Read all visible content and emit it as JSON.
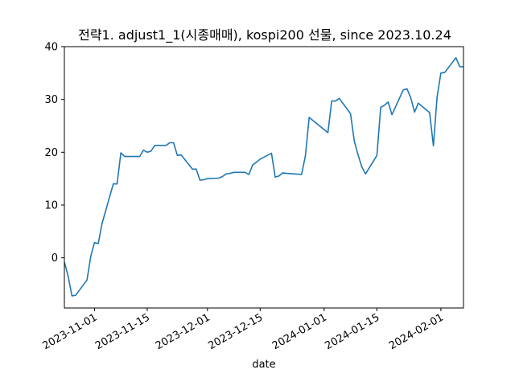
{
  "chart_data": {
    "type": "line",
    "title": "전략1. adjust1_1(시종매매), kospi200 선물, since 2023.10.24",
    "xlabel": "date",
    "ylabel": "",
    "grid": false,
    "legend": "none",
    "xlim": [
      "2023-10-24",
      "2024-02-07"
    ],
    "ylim": [
      -9.5,
      40
    ],
    "yticks": [
      0,
      10,
      20,
      30,
      40
    ],
    "xticks": [
      "2023-11-01",
      "2023-11-15",
      "2023-12-01",
      "2023-12-15",
      "2024-01-01",
      "2024-01-15",
      "2024-02-01"
    ],
    "line_color": "#1f77b4",
    "series": [
      {
        "x": [
          "2023-10-24",
          "2023-10-25",
          "2023-10-26",
          "2023-10-27",
          "2023-10-30",
          "2023-10-31",
          "2023-11-01",
          "2023-11-02",
          "2023-11-03",
          "2023-11-06",
          "2023-11-07",
          "2023-11-08",
          "2023-11-09",
          "2023-11-10",
          "2023-11-13",
          "2023-11-14",
          "2023-11-15",
          "2023-11-16",
          "2023-11-17",
          "2023-11-20",
          "2023-11-21",
          "2023-11-22",
          "2023-11-23",
          "2023-11-24",
          "2023-11-27",
          "2023-11-28",
          "2023-11-29",
          "2023-11-30",
          "2023-12-01",
          "2023-12-04",
          "2023-12-05",
          "2023-12-06",
          "2023-12-07",
          "2023-12-08",
          "2023-12-11",
          "2023-12-12",
          "2023-12-13",
          "2023-12-14",
          "2023-12-15",
          "2023-12-18",
          "2023-12-19",
          "2023-12-20",
          "2023-12-21",
          "2023-12-22",
          "2023-12-26",
          "2023-12-27",
          "2023-12-28",
          "2024-01-02",
          "2024-01-03",
          "2024-01-04",
          "2024-01-05",
          "2024-01-08",
          "2024-01-09",
          "2024-01-10",
          "2024-01-11",
          "2024-01-12",
          "2024-01-15",
          "2024-01-16",
          "2024-01-17",
          "2024-01-18",
          "2024-01-19",
          "2024-01-22",
          "2024-01-23",
          "2024-01-24",
          "2024-01-25",
          "2024-01-26",
          "2024-01-29",
          "2024-01-30",
          "2024-01-31",
          "2024-02-01",
          "2024-02-02",
          "2024-02-05",
          "2024-02-06",
          "2024-02-07"
        ],
        "y": [
          -0.8,
          -3.5,
          -7.2,
          -7.1,
          -4.2,
          0.3,
          2.9,
          2.7,
          6.5,
          14.0,
          14.0,
          19.9,
          19.2,
          19.2,
          19.2,
          20.4,
          20.0,
          20.2,
          21.3,
          21.3,
          21.8,
          21.8,
          19.4,
          19.5,
          16.8,
          16.8,
          14.7,
          14.8,
          15.0,
          15.1,
          15.4,
          15.9,
          16.0,
          16.2,
          16.2,
          15.8,
          17.6,
          18.1,
          18.7,
          19.8,
          15.3,
          15.5,
          16.1,
          16.0,
          15.8,
          19.3,
          26.6,
          23.7,
          29.7,
          29.7,
          30.2,
          27.3,
          22.1,
          19.5,
          17.2,
          15.9,
          19.4,
          28.5,
          28.9,
          29.5,
          27.1,
          31.8,
          32.0,
          30.3,
          27.6,
          29.3,
          27.5,
          21.2,
          30.5,
          35.0,
          35.1,
          37.9,
          36.2,
          36.2
        ]
      }
    ]
  }
}
